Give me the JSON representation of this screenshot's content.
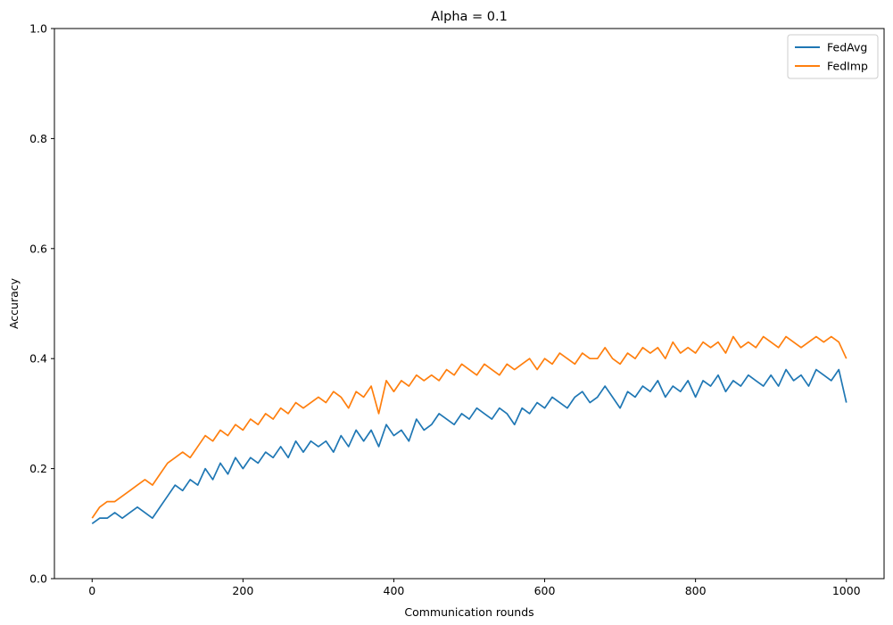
{
  "chart_data": {
    "type": "line",
    "title": "Alpha = 0.1",
    "xlabel": "Communication rounds",
    "ylabel": "Accuracy",
    "xlim": [
      -50,
      1050
    ],
    "ylim": [
      0.0,
      1.0
    ],
    "xticks": [
      0,
      200,
      400,
      600,
      800,
      1000
    ],
    "yticks": [
      0.0,
      0.2,
      0.4,
      0.6,
      0.8,
      1.0
    ],
    "grid": false,
    "legend_position": "top-right",
    "series": [
      {
        "name": "FedAvg",
        "color": "#1f77b4",
        "x": [
          0,
          10,
          20,
          30,
          40,
          50,
          60,
          70,
          80,
          90,
          100,
          110,
          120,
          130,
          140,
          150,
          160,
          170,
          180,
          190,
          200,
          210,
          220,
          230,
          240,
          250,
          260,
          270,
          280,
          290,
          300,
          310,
          320,
          330,
          340,
          350,
          360,
          370,
          380,
          390,
          400,
          410,
          420,
          430,
          440,
          450,
          460,
          470,
          480,
          490,
          500,
          510,
          520,
          530,
          540,
          550,
          560,
          570,
          580,
          590,
          600,
          610,
          620,
          630,
          640,
          650,
          660,
          670,
          680,
          690,
          700,
          710,
          720,
          730,
          740,
          750,
          760,
          770,
          780,
          790,
          800,
          810,
          820,
          830,
          840,
          850,
          860,
          870,
          880,
          890,
          900,
          910,
          920,
          930,
          940,
          950,
          960,
          970,
          980,
          990,
          1000
        ],
        "y": [
          0.1,
          0.11,
          0.11,
          0.12,
          0.11,
          0.12,
          0.13,
          0.12,
          0.11,
          0.13,
          0.15,
          0.17,
          0.16,
          0.18,
          0.17,
          0.2,
          0.18,
          0.21,
          0.19,
          0.22,
          0.2,
          0.22,
          0.21,
          0.23,
          0.22,
          0.24,
          0.22,
          0.25,
          0.23,
          0.25,
          0.24,
          0.25,
          0.23,
          0.26,
          0.24,
          0.27,
          0.25,
          0.27,
          0.24,
          0.28,
          0.26,
          0.27,
          0.25,
          0.29,
          0.27,
          0.28,
          0.3,
          0.29,
          0.28,
          0.3,
          0.29,
          0.31,
          0.3,
          0.29,
          0.31,
          0.3,
          0.28,
          0.31,
          0.3,
          0.32,
          0.31,
          0.33,
          0.32,
          0.31,
          0.33,
          0.34,
          0.32,
          0.33,
          0.35,
          0.33,
          0.31,
          0.34,
          0.33,
          0.35,
          0.34,
          0.36,
          0.33,
          0.35,
          0.34,
          0.36,
          0.33,
          0.36,
          0.35,
          0.37,
          0.34,
          0.36,
          0.35,
          0.37,
          0.36,
          0.35,
          0.37,
          0.35,
          0.38,
          0.36,
          0.37,
          0.35,
          0.38,
          0.37,
          0.36,
          0.38,
          0.32
        ]
      },
      {
        "name": "FedImp",
        "color": "#ff7f0e",
        "x": [
          0,
          10,
          20,
          30,
          40,
          50,
          60,
          70,
          80,
          90,
          100,
          110,
          120,
          130,
          140,
          150,
          160,
          170,
          180,
          190,
          200,
          210,
          220,
          230,
          240,
          250,
          260,
          270,
          280,
          290,
          300,
          310,
          320,
          330,
          340,
          350,
          360,
          370,
          380,
          390,
          400,
          410,
          420,
          430,
          440,
          450,
          460,
          470,
          480,
          490,
          500,
          510,
          520,
          530,
          540,
          550,
          560,
          570,
          580,
          590,
          600,
          610,
          620,
          630,
          640,
          650,
          660,
          670,
          680,
          690,
          700,
          710,
          720,
          730,
          740,
          750,
          760,
          770,
          780,
          790,
          800,
          810,
          820,
          830,
          840,
          850,
          860,
          870,
          880,
          890,
          900,
          910,
          920,
          930,
          940,
          950,
          960,
          970,
          980,
          990,
          1000
        ],
        "y": [
          0.11,
          0.13,
          0.14,
          0.14,
          0.15,
          0.16,
          0.17,
          0.18,
          0.17,
          0.19,
          0.21,
          0.22,
          0.23,
          0.22,
          0.24,
          0.26,
          0.25,
          0.27,
          0.26,
          0.28,
          0.27,
          0.29,
          0.28,
          0.3,
          0.29,
          0.31,
          0.3,
          0.32,
          0.31,
          0.32,
          0.33,
          0.32,
          0.34,
          0.33,
          0.31,
          0.34,
          0.33,
          0.35,
          0.3,
          0.36,
          0.34,
          0.36,
          0.35,
          0.37,
          0.36,
          0.37,
          0.36,
          0.38,
          0.37,
          0.39,
          0.38,
          0.37,
          0.39,
          0.38,
          0.37,
          0.39,
          0.38,
          0.39,
          0.4,
          0.38,
          0.4,
          0.39,
          0.41,
          0.4,
          0.39,
          0.41,
          0.4,
          0.4,
          0.42,
          0.4,
          0.39,
          0.41,
          0.4,
          0.42,
          0.41,
          0.42,
          0.4,
          0.43,
          0.41,
          0.42,
          0.41,
          0.43,
          0.42,
          0.43,
          0.41,
          0.44,
          0.42,
          0.43,
          0.42,
          0.44,
          0.43,
          0.42,
          0.44,
          0.43,
          0.42,
          0.43,
          0.44,
          0.43,
          0.44,
          0.43,
          0.4
        ]
      }
    ]
  }
}
